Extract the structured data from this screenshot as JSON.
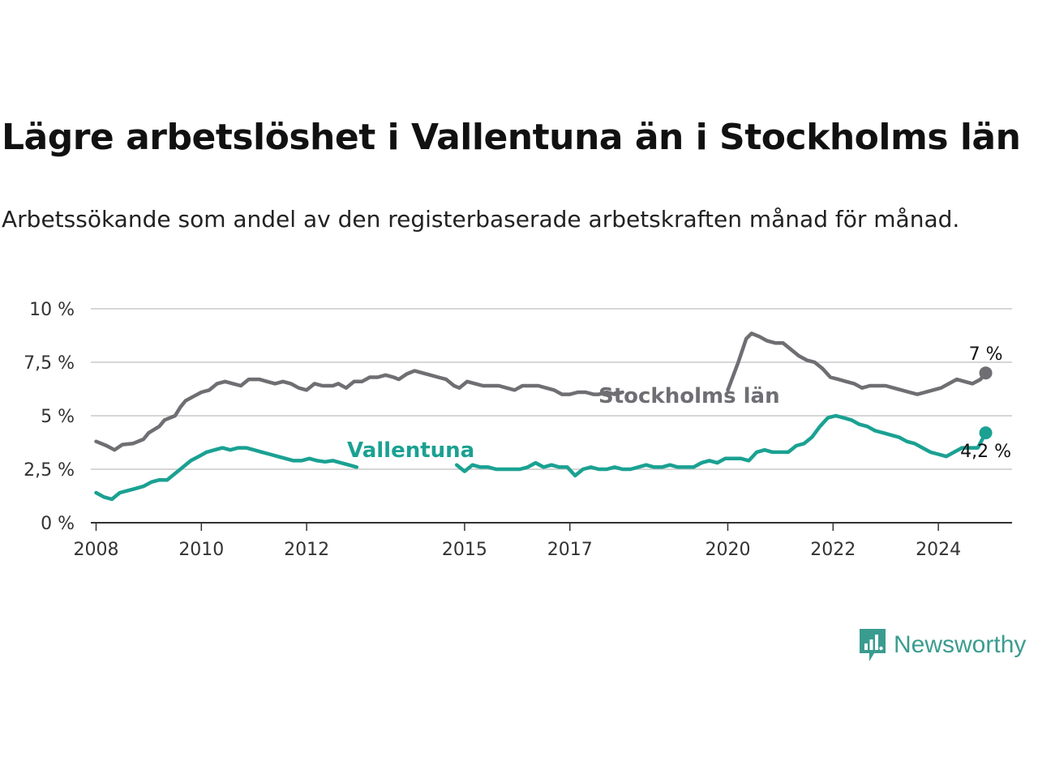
{
  "title": "Lägre arbetslöshet i Vallentuna än i Stockholms län",
  "subtitle": "Arbetssökande som andel av den registerbaserade arbetskraften månad för månad.",
  "brand": "Newsworthy",
  "colors": {
    "stockholm": "#6e6e73",
    "vallentuna": "#1aa192",
    "grid": "#d6d6d6",
    "axis": "#333333"
  },
  "chart_data": {
    "type": "line",
    "xlabel": "",
    "ylabel": "",
    "xlim": [
      2007.9,
      2025.4
    ],
    "ylim": [
      0,
      10
    ],
    "x_ticks": [
      {
        "value": 2008,
        "label": "2008"
      },
      {
        "value": 2010,
        "label": "2010"
      },
      {
        "value": 2012,
        "label": "2012"
      },
      {
        "value": 2015,
        "label": "2015"
      },
      {
        "value": 2017,
        "label": "2017"
      },
      {
        "value": 2020,
        "label": "2020"
      },
      {
        "value": 2022,
        "label": "2022"
      },
      {
        "value": 2024,
        "label": "2024"
      }
    ],
    "y_ticks": [
      {
        "value": 0,
        "label": "0 %"
      },
      {
        "value": 2.5,
        "label": "2,5 %"
      },
      {
        "value": 5,
        "label": "5 %"
      },
      {
        "value": 7.5,
        "label": "7,5 %"
      },
      {
        "value": 10,
        "label": "10 %"
      }
    ],
    "series": [
      {
        "name": "Stockholms län",
        "label": "Stockholms län",
        "end_label": "7 %",
        "color": "#6e6e73",
        "points": [
          [
            2008.0,
            3.8
          ],
          [
            2008.2,
            3.6
          ],
          [
            2008.35,
            3.4
          ],
          [
            2008.5,
            3.65
          ],
          [
            2008.7,
            3.7
          ],
          [
            2008.9,
            3.9
          ],
          [
            2009.0,
            4.2
          ],
          [
            2009.2,
            4.5
          ],
          [
            2009.3,
            4.8
          ],
          [
            2009.5,
            5.0
          ],
          [
            2009.6,
            5.4
          ],
          [
            2009.7,
            5.7
          ],
          [
            2009.85,
            5.9
          ],
          [
            2010.0,
            6.1
          ],
          [
            2010.15,
            6.2
          ],
          [
            2010.3,
            6.5
          ],
          [
            2010.45,
            6.6
          ],
          [
            2010.6,
            6.5
          ],
          [
            2010.75,
            6.4
          ],
          [
            2010.9,
            6.7
          ],
          [
            2011.1,
            6.7
          ],
          [
            2011.25,
            6.6
          ],
          [
            2011.4,
            6.5
          ],
          [
            2011.55,
            6.6
          ],
          [
            2011.7,
            6.5
          ],
          [
            2011.85,
            6.3
          ],
          [
            2012.0,
            6.2
          ],
          [
            2012.15,
            6.5
          ],
          [
            2012.3,
            6.4
          ],
          [
            2012.5,
            6.4
          ],
          [
            2012.6,
            6.5
          ],
          [
            2012.75,
            6.3
          ],
          [
            2012.9,
            6.6
          ],
          [
            2013.05,
            6.6
          ],
          [
            2013.2,
            6.8
          ],
          [
            2013.35,
            6.8
          ],
          [
            2013.5,
            6.9
          ],
          [
            2013.65,
            6.8
          ],
          [
            2013.75,
            6.7
          ],
          [
            2013.9,
            6.95
          ],
          [
            2014.05,
            7.1
          ],
          [
            2014.2,
            7.0
          ],
          [
            2014.35,
            6.9
          ],
          [
            2014.5,
            6.8
          ],
          [
            2014.65,
            6.7
          ],
          [
            2014.8,
            6.4
          ],
          [
            2014.9,
            6.3
          ],
          [
            2015.05,
            6.6
          ],
          [
            2015.2,
            6.5
          ],
          [
            2015.35,
            6.4
          ],
          [
            2015.5,
            6.4
          ],
          [
            2015.65,
            6.4
          ],
          [
            2015.8,
            6.3
          ],
          [
            2015.95,
            6.2
          ],
          [
            2016.1,
            6.4
          ],
          [
            2016.25,
            6.4
          ],
          [
            2016.4,
            6.4
          ],
          [
            2016.55,
            6.3
          ],
          [
            2016.7,
            6.2
          ],
          [
            2016.85,
            6.0
          ],
          [
            2017.0,
            6.0
          ],
          [
            2017.15,
            6.1
          ],
          [
            2017.3,
            6.1
          ],
          [
            2017.45,
            6.0
          ],
          [
            2017.55,
            6.0
          ],
          [
            2017.7,
            6.1
          ],
          [
            2017.85,
            6.0
          ],
          [
            2018.0,
            6.1
          ],
          null,
          [
            2020.0,
            6.2
          ],
          [
            2020.2,
            7.5
          ],
          [
            2020.35,
            8.6
          ],
          [
            2020.45,
            8.85
          ],
          [
            2020.6,
            8.7
          ],
          [
            2020.75,
            8.5
          ],
          [
            2020.9,
            8.4
          ],
          [
            2021.05,
            8.4
          ],
          [
            2021.2,
            8.1
          ],
          [
            2021.35,
            7.8
          ],
          [
            2021.5,
            7.6
          ],
          [
            2021.65,
            7.5
          ],
          [
            2021.8,
            7.2
          ],
          [
            2021.95,
            6.8
          ],
          [
            2022.1,
            6.7
          ],
          [
            2022.25,
            6.6
          ],
          [
            2022.4,
            6.5
          ],
          [
            2022.55,
            6.3
          ],
          [
            2022.7,
            6.4
          ],
          [
            2022.85,
            6.4
          ],
          [
            2023.0,
            6.4
          ],
          [
            2023.15,
            6.3
          ],
          [
            2023.3,
            6.2
          ],
          [
            2023.45,
            6.1
          ],
          [
            2023.6,
            6.0
          ],
          [
            2023.75,
            6.1
          ],
          [
            2023.9,
            6.2
          ],
          [
            2024.05,
            6.3
          ],
          [
            2024.2,
            6.5
          ],
          [
            2024.35,
            6.7
          ],
          [
            2024.5,
            6.6
          ],
          [
            2024.65,
            6.5
          ],
          [
            2024.8,
            6.7
          ],
          [
            2024.9,
            7.0
          ]
        ]
      },
      {
        "name": "Vallentuna",
        "label": "Vallentuna",
        "end_label": "4,2 %",
        "color": "#1aa192",
        "points": [
          [
            2008.0,
            1.4
          ],
          [
            2008.15,
            1.2
          ],
          [
            2008.3,
            1.1
          ],
          [
            2008.45,
            1.4
          ],
          [
            2008.6,
            1.5
          ],
          [
            2008.75,
            1.6
          ],
          [
            2008.9,
            1.7
          ],
          [
            2009.05,
            1.9
          ],
          [
            2009.2,
            2.0
          ],
          [
            2009.35,
            2.0
          ],
          [
            2009.5,
            2.3
          ],
          [
            2009.65,
            2.6
          ],
          [
            2009.8,
            2.9
          ],
          [
            2009.95,
            3.1
          ],
          [
            2010.1,
            3.3
          ],
          [
            2010.25,
            3.4
          ],
          [
            2010.4,
            3.5
          ],
          [
            2010.55,
            3.4
          ],
          [
            2010.7,
            3.5
          ],
          [
            2010.85,
            3.5
          ],
          [
            2011.0,
            3.4
          ],
          [
            2011.15,
            3.3
          ],
          [
            2011.3,
            3.2
          ],
          [
            2011.45,
            3.1
          ],
          [
            2011.6,
            3.0
          ],
          [
            2011.75,
            2.9
          ],
          [
            2011.9,
            2.9
          ],
          [
            2012.05,
            3.0
          ],
          [
            2012.2,
            2.9
          ],
          [
            2012.35,
            2.85
          ],
          [
            2012.5,
            2.9
          ],
          [
            2012.65,
            2.8
          ],
          [
            2012.8,
            2.7
          ],
          [
            2012.95,
            2.6
          ],
          null,
          [
            2014.85,
            2.7
          ],
          [
            2015.0,
            2.4
          ],
          [
            2015.15,
            2.7
          ],
          [
            2015.3,
            2.6
          ],
          [
            2015.45,
            2.6
          ],
          [
            2015.6,
            2.5
          ],
          [
            2015.75,
            2.5
          ],
          [
            2015.9,
            2.5
          ],
          [
            2016.05,
            2.5
          ],
          [
            2016.2,
            2.6
          ],
          [
            2016.35,
            2.8
          ],
          [
            2016.5,
            2.6
          ],
          [
            2016.65,
            2.7
          ],
          [
            2016.8,
            2.6
          ],
          [
            2016.95,
            2.6
          ],
          [
            2017.1,
            2.2
          ],
          [
            2017.25,
            2.5
          ],
          [
            2017.4,
            2.6
          ],
          [
            2017.55,
            2.5
          ],
          [
            2017.7,
            2.5
          ],
          [
            2017.85,
            2.6
          ],
          [
            2018.0,
            2.5
          ],
          [
            2018.15,
            2.5
          ],
          [
            2018.3,
            2.6
          ],
          [
            2018.45,
            2.7
          ],
          [
            2018.6,
            2.6
          ],
          [
            2018.75,
            2.6
          ],
          [
            2018.9,
            2.7
          ],
          [
            2019.05,
            2.6
          ],
          [
            2019.2,
            2.6
          ],
          [
            2019.35,
            2.6
          ],
          [
            2019.5,
            2.8
          ],
          [
            2019.65,
            2.9
          ],
          [
            2019.8,
            2.8
          ],
          [
            2019.95,
            3.0
          ],
          [
            2020.1,
            3.0
          ],
          [
            2020.25,
            3.0
          ],
          [
            2020.4,
            2.9
          ],
          [
            2020.55,
            3.3
          ],
          [
            2020.7,
            3.4
          ],
          [
            2020.85,
            3.3
          ],
          [
            2021.0,
            3.3
          ],
          [
            2021.15,
            3.3
          ],
          [
            2021.3,
            3.6
          ],
          [
            2021.45,
            3.7
          ],
          [
            2021.6,
            4.0
          ],
          [
            2021.75,
            4.5
          ],
          [
            2021.9,
            4.9
          ],
          [
            2022.05,
            5.0
          ],
          [
            2022.2,
            4.9
          ],
          [
            2022.35,
            4.8
          ],
          [
            2022.5,
            4.6
          ],
          [
            2022.65,
            4.5
          ],
          [
            2022.8,
            4.3
          ],
          [
            2022.95,
            4.2
          ],
          [
            2023.1,
            4.1
          ],
          [
            2023.25,
            4.0
          ],
          [
            2023.4,
            3.8
          ],
          [
            2023.55,
            3.7
          ],
          [
            2023.7,
            3.5
          ],
          [
            2023.85,
            3.3
          ],
          [
            2024.0,
            3.2
          ],
          [
            2024.15,
            3.1
          ],
          [
            2024.3,
            3.3
          ],
          [
            2024.45,
            3.5
          ],
          [
            2024.6,
            3.5
          ],
          [
            2024.75,
            3.5
          ],
          [
            2024.9,
            4.2
          ]
        ]
      }
    ]
  }
}
